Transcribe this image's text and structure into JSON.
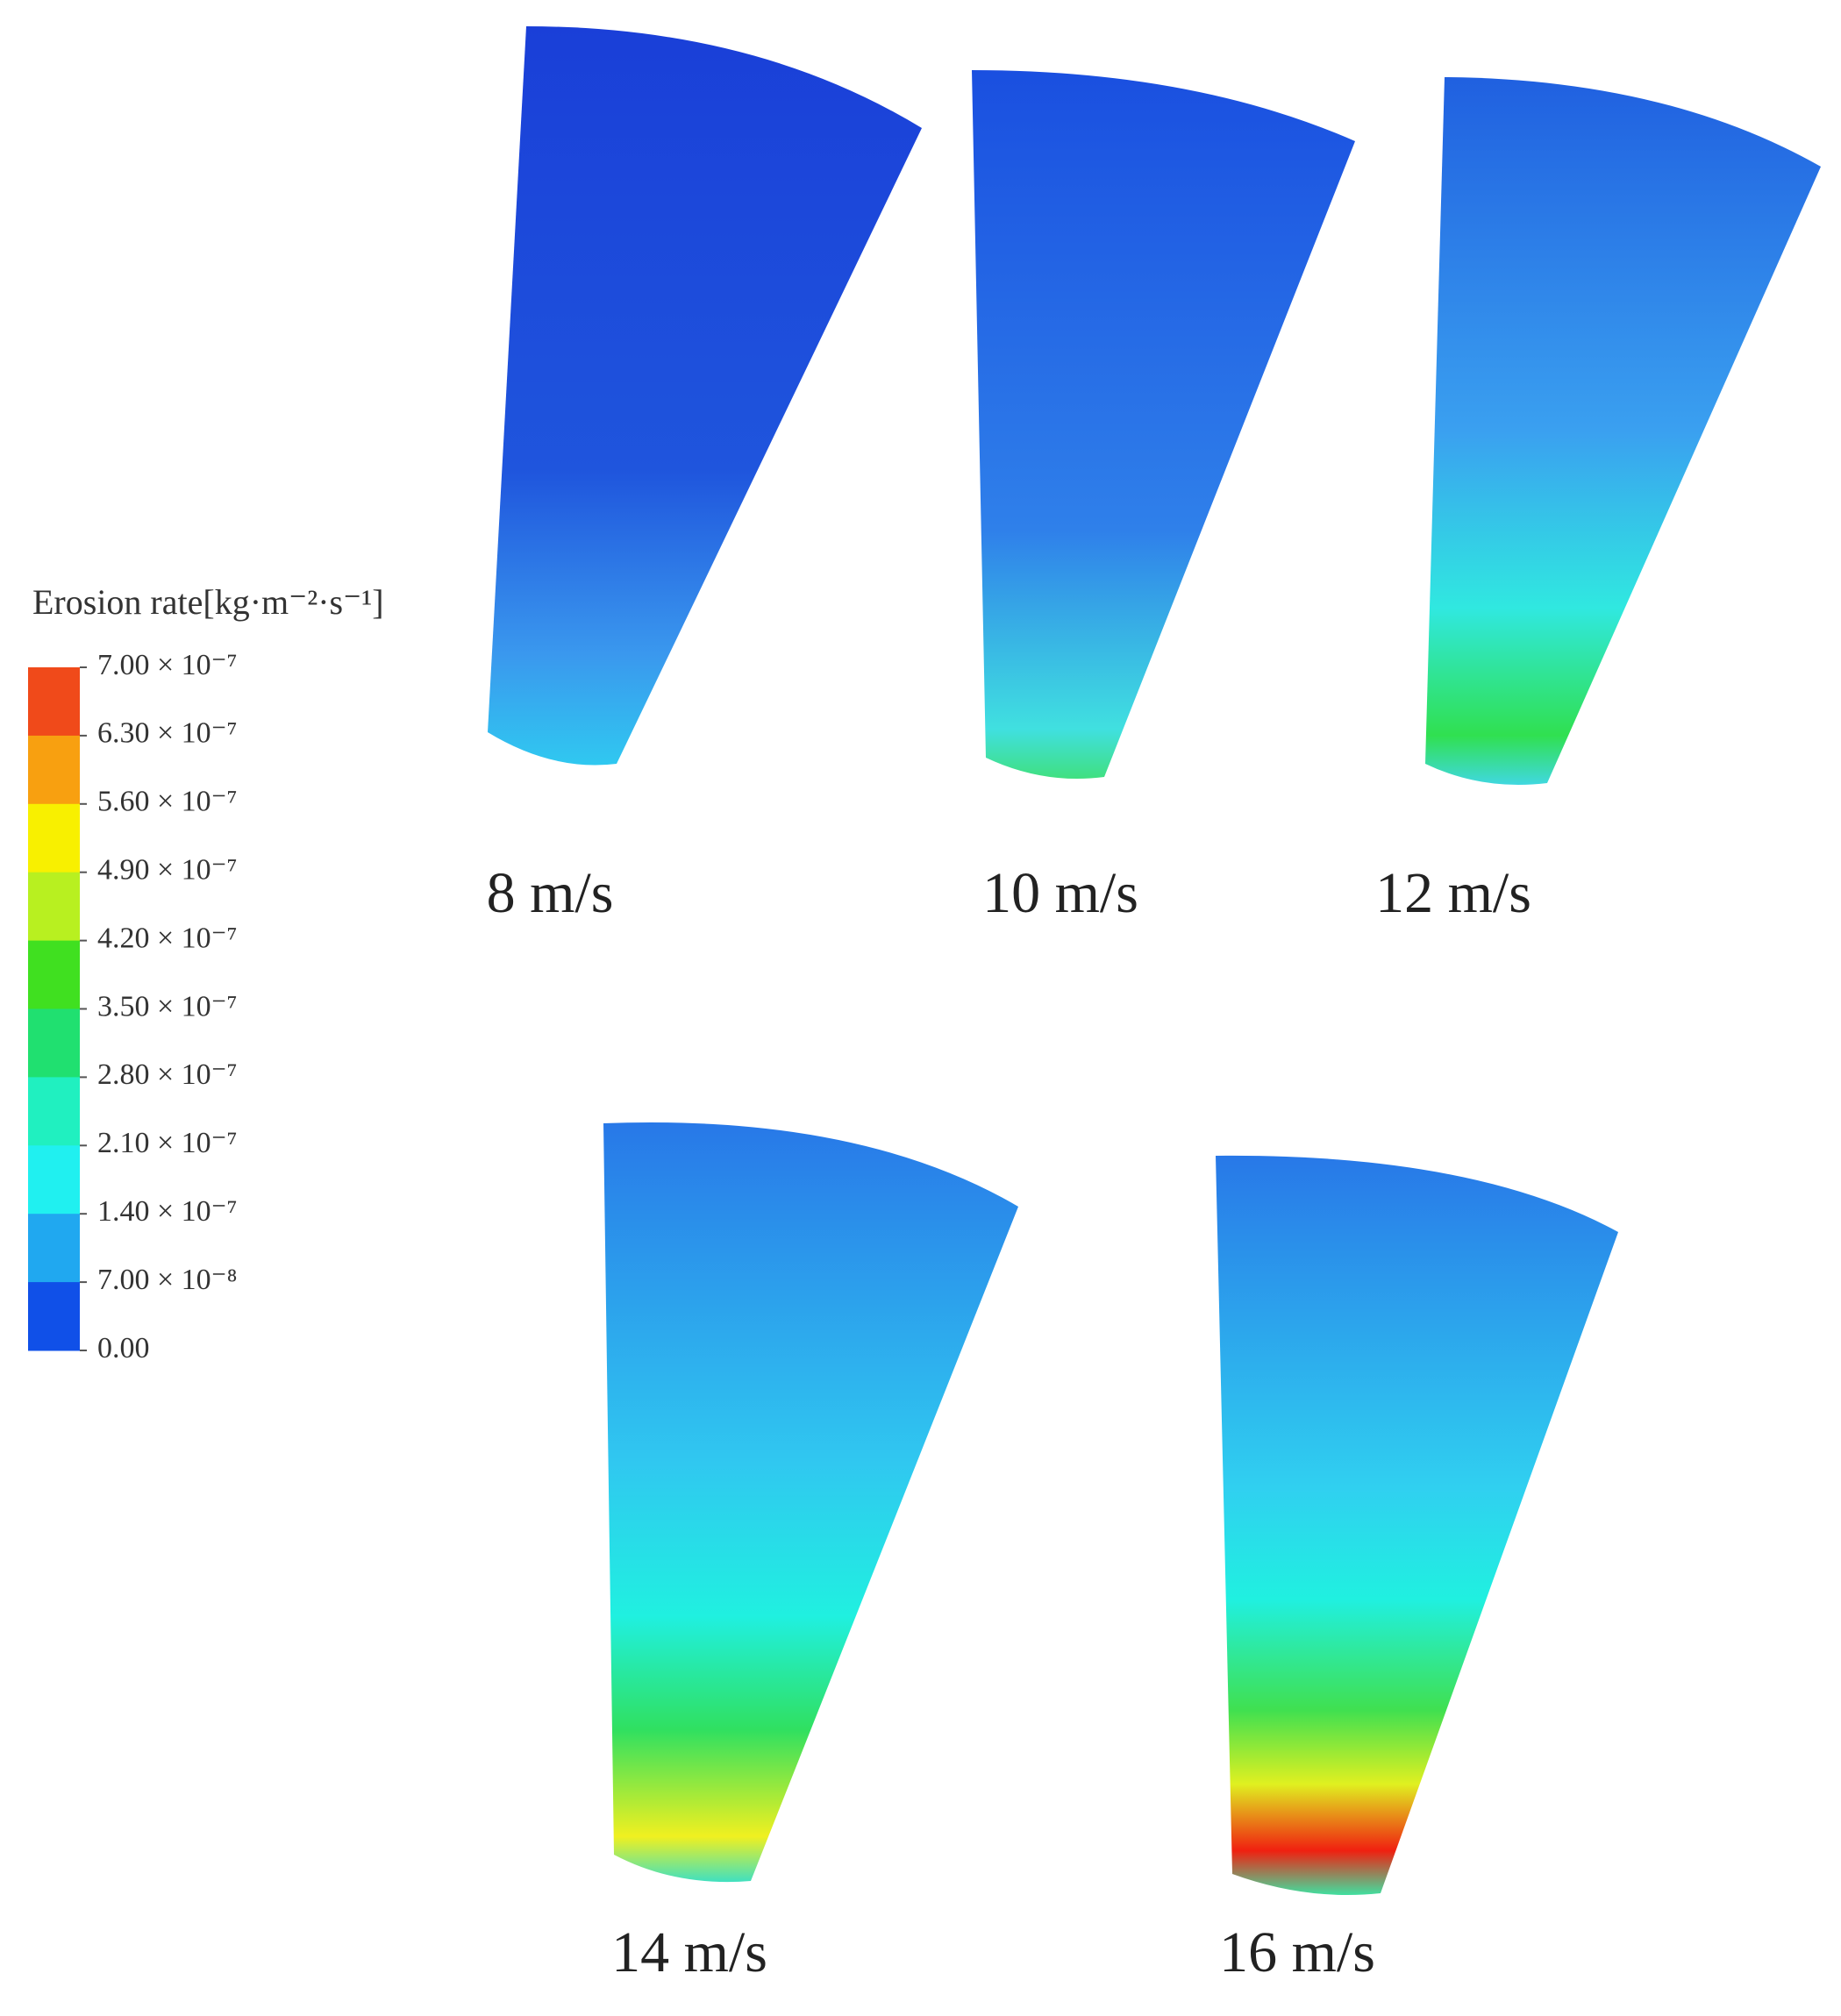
{
  "legend": {
    "title": "Erosion rate[kg·m⁻²·s⁻¹]",
    "ticks": [
      "7.00 × 10⁻⁷",
      "6.30 × 10⁻⁷",
      "5.60 × 10⁻⁷",
      "4.90 × 10⁻⁷",
      "4.20 × 10⁻⁷",
      "3.50 × 10⁻⁷",
      "2.80 × 10⁻⁷",
      "2.10 × 10⁻⁷",
      "1.40 × 10⁻⁷",
      "7.00 × 10⁻⁸",
      "0.00"
    ],
    "colors": [
      "#f04a1a",
      "#f8a010",
      "#f8f000",
      "#b8f020",
      "#40e020",
      "#20e070",
      "#20f0c0",
      "#20f0f0",
      "#20a8f0",
      "#1050e8"
    ]
  },
  "panels": [
    {
      "label": "8 m/s"
    },
    {
      "label": "10 m/s"
    },
    {
      "label": "12 m/s"
    },
    {
      "label": "14 m/s"
    },
    {
      "label": "16 m/s"
    }
  ]
}
